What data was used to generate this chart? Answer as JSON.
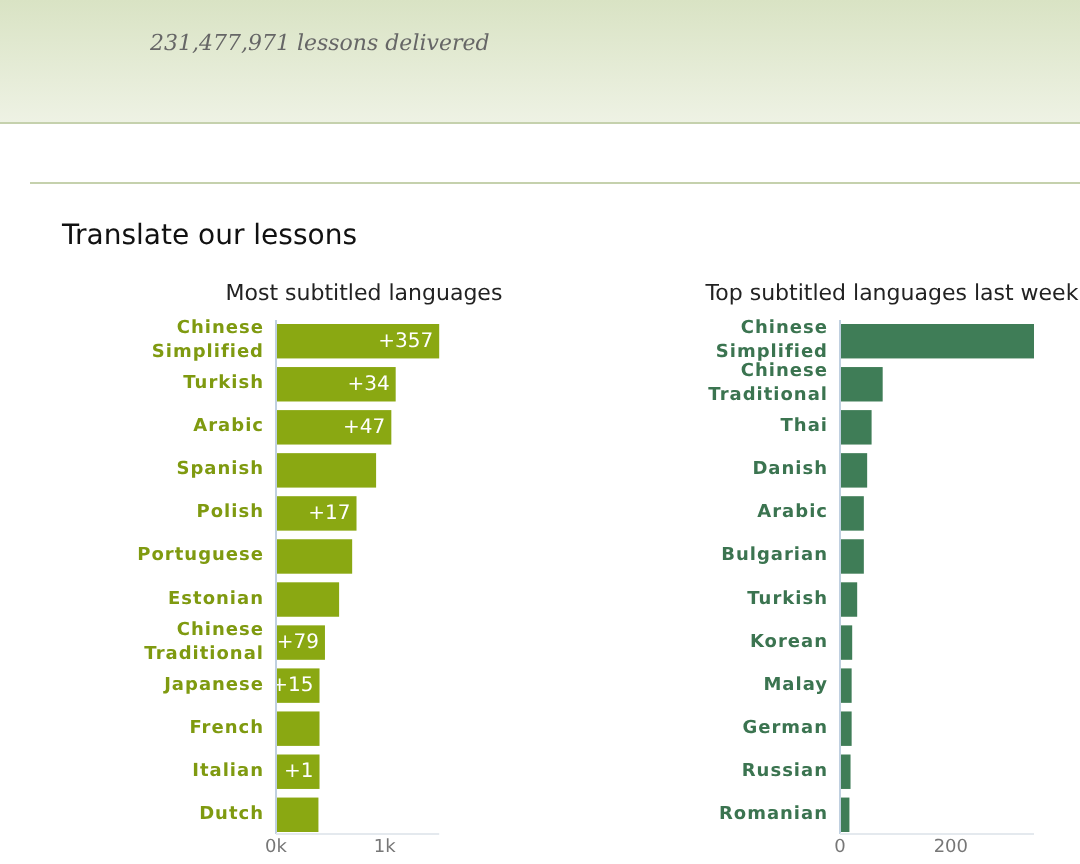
{
  "chart_data": [
    {
      "type": "bar",
      "orientation": "horizontal",
      "title": "Most subtitled languages",
      "annotations": [
        "231,477,971 lessons delivered",
        "Translate our lessons",
        {
          "text": "+357",
          "y": "Chinese\nSimplified",
          "x": 1500
        },
        {
          "text": "+34",
          "y": "Turkish",
          "x": 1100
        },
        {
          "text": "+47",
          "y": "Arabic",
          "x": 1060
        },
        {
          "text": "+17",
          "y": "Polish",
          "x": 740
        },
        {
          "text": "+79",
          "y": "Chinese\nTraditional",
          "x": 450
        },
        {
          "text": "+15",
          "y": "Japanese",
          "x": 400
        },
        {
          "text": "+1",
          "y": "Italian",
          "x": 400
        }
      ],
      "categories": [
        "Chinese\nSimplified",
        "Turkish",
        "Arabic",
        "Spanish",
        "Polish",
        "Portuguese",
        "Estonian",
        "Chinese\nTraditional",
        "Japanese",
        "French",
        "Italian",
        "Dutch"
      ],
      "values": [
        1500,
        1100,
        1060,
        920,
        740,
        700,
        580,
        450,
        400,
        400,
        400,
        390
      ],
      "color": "#8aa812",
      "xlim": [
        0,
        1500
      ],
      "xticks": [
        {
          "value": 0,
          "label": "0k"
        },
        {
          "value": 1000,
          "label": "1k"
        }
      ]
    },
    {
      "type": "bar",
      "orientation": "horizontal",
      "title": "Top subtitled languages last week",
      "categories": [
        "Chinese\nSimplified",
        "Chinese\nTraditional",
        "Thai",
        "Danish",
        "Arabic",
        "Bulgarian",
        "Turkish",
        "Korean",
        "Malay",
        "German",
        "Russian",
        "Romanian"
      ],
      "values": [
        350,
        77,
        57,
        49,
        43,
        43,
        31,
        22,
        21,
        21,
        19,
        17
      ],
      "color": "#3f7d57",
      "xlim": [
        0,
        350
      ],
      "xticks": [
        0,
        200
      ]
    }
  ]
}
